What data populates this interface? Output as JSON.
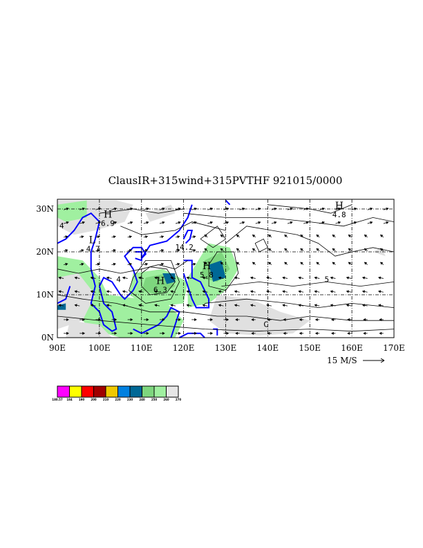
{
  "title": "ClausIR+315wind+315PVTHF 921015/0000",
  "axes": {
    "lat_ticks": [
      "30N",
      "20N",
      "10N",
      "0N"
    ],
    "lon_ticks": [
      "90E",
      "100E",
      "110E",
      "120E",
      "130E",
      "140E",
      "150E",
      "160E",
      "170E"
    ]
  },
  "vector_key": "15 M/S",
  "pressure_labels": [
    {
      "sym": "H",
      "val": "6.9",
      "lon": 101,
      "lat": 28
    },
    {
      "sym": "L",
      "val": "4.7",
      "lon": 97.5,
      "lat": 22
    },
    {
      "sym": "H",
      "val": "6.3",
      "lon": 113.5,
      "lat": 12.5
    },
    {
      "sym": "H",
      "val": "5.8",
      "lon": 124.5,
      "lat": 16
    },
    {
      "sym": "H",
      "val": "4.8",
      "lon": 156,
      "lat": 30
    }
  ],
  "contour_labels": [
    {
      "text": "4",
      "lon": 90.5,
      "lat": 25.5
    },
    {
      "text": "14.2",
      "lon": 118,
      "lat": 20.5
    },
    {
      "text": "5",
      "lon": 153.5,
      "lat": 13
    },
    {
      "text": "C",
      "lon": 139,
      "lat": 2.5
    },
    {
      "text": "4",
      "lon": 104,
      "lat": 13
    }
  ],
  "colorbar": {
    "colors": [
      "#ff00ff",
      "#ffff00",
      "#ff0000",
      "#a00000",
      "#f0c800",
      "#0080e0",
      "#006896",
      "#7ed67e",
      "#a0f0a0",
      "#e6e6e6"
    ],
    "labels": [
      "180.57",
      "184",
      "190",
      "200",
      "210",
      "220",
      "230",
      "240",
      "250",
      "260",
      "270"
    ]
  },
  "colors": {
    "coast": "#0000ff",
    "light_gray": "#e0e0e0",
    "light_green": "#a0f0a0",
    "green": "#7ed67e",
    "teal": "#006896",
    "blue": "#0080e0"
  }
}
